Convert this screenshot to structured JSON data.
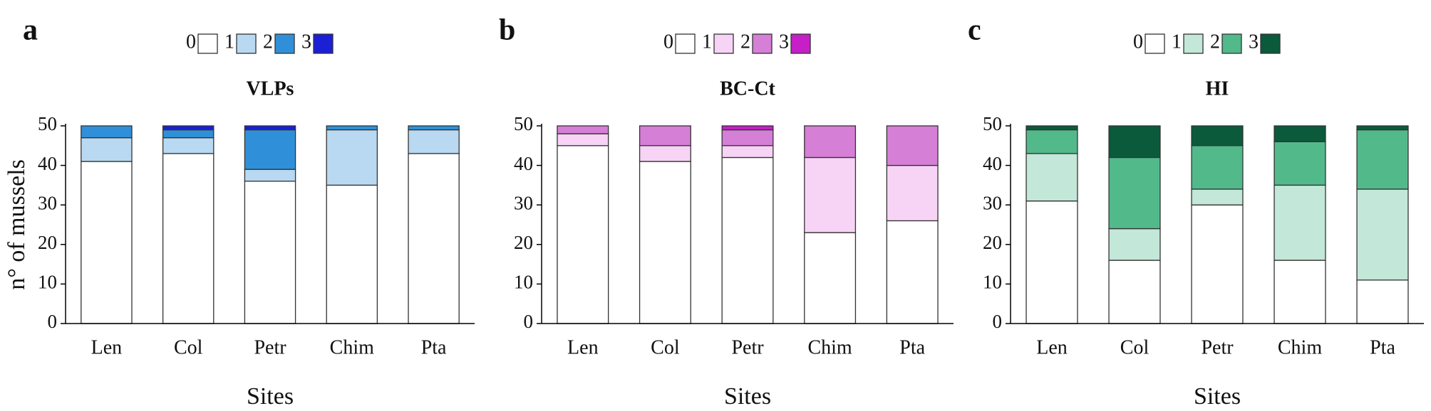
{
  "chart_data": [
    {
      "type": "bar",
      "stacked": true,
      "panel_label": "a",
      "title": "VLPs",
      "xlabel": "Sites",
      "ylabel": "n° of mussels",
      "categories": [
        "Len",
        "Col",
        "Petr",
        "Chim",
        "Pta"
      ],
      "series": [
        {
          "name": "0",
          "color": "#ffffff",
          "values": [
            41,
            43,
            36,
            35,
            43
          ]
        },
        {
          "name": "1",
          "color": "#b8d9f1",
          "values": [
            6,
            4,
            3,
            14,
            6
          ]
        },
        {
          "name": "2",
          "color": "#2f90d9",
          "values": [
            3,
            2,
            10,
            1,
            1
          ]
        },
        {
          "name": "3",
          "color": "#1b1fd6",
          "values": [
            0,
            1,
            1,
            0,
            0
          ]
        }
      ],
      "ylim": [
        0,
        50
      ],
      "yticks": [
        0,
        10,
        20,
        30,
        40,
        50
      ]
    },
    {
      "type": "bar",
      "stacked": true,
      "panel_label": "b",
      "title": "BC-Ct",
      "xlabel": "Sites",
      "categories": [
        "Len",
        "Col",
        "Petr",
        "Chim",
        "Pta"
      ],
      "series": [
        {
          "name": "0",
          "color": "#ffffff",
          "values": [
            45,
            41,
            42,
            23,
            26
          ]
        },
        {
          "name": "1",
          "color": "#f7d3f5",
          "values": [
            3,
            4,
            3,
            19,
            14
          ]
        },
        {
          "name": "2",
          "color": "#d57fd6",
          "values": [
            2,
            5,
            4,
            8,
            10
          ]
        },
        {
          "name": "3",
          "color": "#c61fc8",
          "values": [
            0,
            0,
            1,
            0,
            0
          ]
        }
      ],
      "ylim": [
        0,
        50
      ],
      "yticks": [
        0,
        10,
        20,
        30,
        40,
        50
      ]
    },
    {
      "type": "bar",
      "stacked": true,
      "panel_label": "c",
      "title": "HI",
      "xlabel": "Sites",
      "categories": [
        "Len",
        "Col",
        "Petr",
        "Chim",
        "Pta"
      ],
      "series": [
        {
          "name": "0",
          "color": "#ffffff",
          "values": [
            31,
            16,
            30,
            16,
            11
          ]
        },
        {
          "name": "1",
          "color": "#c3e7d8",
          "values": [
            12,
            8,
            4,
            19,
            23
          ]
        },
        {
          "name": "2",
          "color": "#52b98b",
          "values": [
            6,
            18,
            11,
            11,
            15
          ]
        },
        {
          "name": "3",
          "color": "#0b5a3b",
          "values": [
            1,
            8,
            5,
            4,
            1
          ]
        }
      ],
      "ylim": [
        0,
        50
      ],
      "yticks": [
        0,
        10,
        20,
        30,
        40,
        50
      ]
    }
  ]
}
